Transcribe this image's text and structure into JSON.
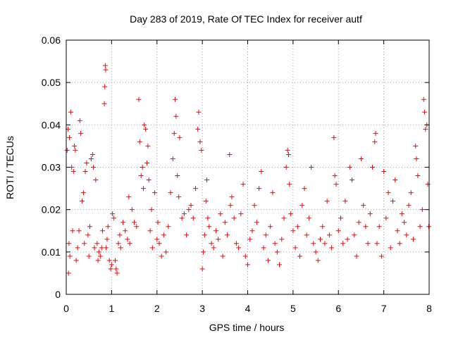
{
  "chart_data": {
    "type": "scatter",
    "title": "Day 283 of 2019, Rate Of TEC Index for receiver autf",
    "xlabel": "GPS time / hours",
    "ylabel": "ROTI / TECUs",
    "xlim": [
      0,
      8
    ],
    "ylim": [
      0,
      0.06
    ],
    "x_ticks": [
      "0",
      "1",
      "2",
      "3",
      "4",
      "5",
      "6",
      "7",
      "8"
    ],
    "y_ticks": [
      "0",
      "0.01",
      "0.02",
      "0.03",
      "0.04",
      "0.05",
      "0.06"
    ],
    "grid": true,
    "marker": "+",
    "point_color": "#ff0000",
    "series": [
      {
        "points": [
          [
            0.02,
            0.034
          ],
          [
            0.04,
            0.039
          ],
          [
            0.05,
            0.005
          ],
          [
            0.06,
            0.012
          ],
          [
            0.07,
            0.037
          ],
          [
            0.08,
            0.009
          ],
          [
            0.1,
            0.043
          ],
          [
            0.12,
            0.03
          ],
          [
            0.14,
            0.015
          ],
          [
            0.16,
            0.029
          ],
          [
            0.18,
            0.035
          ],
          [
            0.2,
            0.034
          ],
          [
            0.22,
            0.008
          ],
          [
            0.25,
            0.011
          ],
          [
            0.28,
            0.015
          ],
          [
            0.3,
            0.041
          ],
          [
            0.32,
            0.038
          ],
          [
            0.35,
            0.022
          ],
          [
            0.38,
            0.024
          ],
          [
            0.4,
            0.012
          ],
          [
            0.42,
            0.029
          ],
          [
            0.45,
            0.031
          ],
          [
            0.48,
            0.014
          ],
          [
            0.5,
            0.009
          ],
          [
            0.52,
            0.016
          ],
          [
            0.55,
            0.032
          ],
          [
            0.58,
            0.033
          ],
          [
            0.6,
            0.03
          ],
          [
            0.62,
            0.011
          ],
          [
            0.65,
            0.027
          ],
          [
            0.68,
            0.012
          ],
          [
            0.7,
            0.008
          ],
          [
            0.72,
            0.01
          ],
          [
            0.75,
            0.009
          ],
          [
            0.78,
            0.011
          ],
          [
            0.8,
            0.015
          ],
          [
            0.84,
            0.045
          ],
          [
            0.85,
            0.049
          ],
          [
            0.86,
            0.054
          ],
          [
            0.87,
            0.053
          ],
          [
            0.88,
            0.011
          ],
          [
            0.9,
            0.013
          ],
          [
            0.92,
            0.016
          ],
          [
            0.95,
            0.008
          ],
          [
            0.98,
            0.006
          ],
          [
            1.0,
            0.007
          ],
          [
            1.02,
            0.019
          ],
          [
            1.05,
            0.018
          ],
          [
            1.08,
            0.008
          ],
          [
            1.1,
            0.006
          ],
          [
            1.12,
            0.005
          ],
          [
            1.15,
            0.012
          ],
          [
            1.18,
            0.014
          ],
          [
            1.2,
            0.011
          ],
          [
            1.25,
            0.017
          ],
          [
            1.3,
            0.015
          ],
          [
            1.35,
            0.013
          ],
          [
            1.38,
            0.023
          ],
          [
            1.4,
            0.012
          ],
          [
            1.45,
            0.02
          ],
          [
            1.5,
            0.017
          ],
          [
            1.55,
            0.016
          ],
          [
            1.6,
            0.046
          ],
          [
            1.62,
            0.036
          ],
          [
            1.65,
            0.028
          ],
          [
            1.68,
            0.03
          ],
          [
            1.7,
            0.025
          ],
          [
            1.72,
            0.04
          ],
          [
            1.75,
            0.039
          ],
          [
            1.78,
            0.031
          ],
          [
            1.8,
            0.035
          ],
          [
            1.82,
            0.027
          ],
          [
            1.85,
            0.015
          ],
          [
            1.88,
            0.02
          ],
          [
            1.9,
            0.011
          ],
          [
            1.95,
            0.024
          ],
          [
            2.0,
            0.013
          ],
          [
            2.02,
            0.017
          ],
          [
            2.05,
            0.012
          ],
          [
            2.1,
            0.009
          ],
          [
            2.15,
            0.014
          ],
          [
            2.2,
            0.01
          ],
          [
            2.25,
            0.016
          ],
          [
            2.3,
            0.024
          ],
          [
            2.35,
            0.032
          ],
          [
            2.38,
            0.038
          ],
          [
            2.4,
            0.046
          ],
          [
            2.42,
            0.042
          ],
          [
            2.45,
            0.028
          ],
          [
            2.48,
            0.023
          ],
          [
            2.5,
            0.037
          ],
          [
            2.55,
            0.018
          ],
          [
            2.6,
            0.019
          ],
          [
            2.65,
            0.014
          ],
          [
            2.7,
            0.02
          ],
          [
            2.75,
            0.021
          ],
          [
            2.8,
            0.018
          ],
          [
            2.85,
            0.025
          ],
          [
            2.9,
            0.039
          ],
          [
            2.92,
            0.043
          ],
          [
            2.95,
            0.036
          ],
          [
            2.98,
            0.034
          ],
          [
            3.0,
            0.006
          ],
          [
            3.02,
            0.01
          ],
          [
            3.05,
            0.014
          ],
          [
            3.08,
            0.022
          ],
          [
            3.1,
            0.027
          ],
          [
            3.12,
            0.018
          ],
          [
            3.15,
            0.016
          ],
          [
            3.2,
            0.012
          ],
          [
            3.25,
            0.011
          ],
          [
            3.3,
            0.015
          ],
          [
            3.35,
            0.013
          ],
          [
            3.4,
            0.019
          ],
          [
            3.45,
            0.009
          ],
          [
            3.5,
            0.017
          ],
          [
            3.55,
            0.014
          ],
          [
            3.6,
            0.033
          ],
          [
            3.62,
            0.021
          ],
          [
            3.65,
            0.023
          ],
          [
            3.7,
            0.018
          ],
          [
            3.75,
            0.012
          ],
          [
            3.8,
            0.011
          ],
          [
            3.85,
            0.019
          ],
          [
            3.9,
            0.026
          ],
          [
            3.95,
            0.009
          ],
          [
            4.0,
            0.007
          ],
          [
            4.05,
            0.013
          ],
          [
            4.1,
            0.015
          ],
          [
            4.15,
            0.021
          ],
          [
            4.2,
            0.017
          ],
          [
            4.25,
            0.025
          ],
          [
            4.3,
            0.029
          ],
          [
            4.35,
            0.011
          ],
          [
            4.4,
            0.014
          ],
          [
            4.45,
            0.008
          ],
          [
            4.5,
            0.016
          ],
          [
            4.55,
            0.024
          ],
          [
            4.6,
            0.012
          ],
          [
            4.65,
            0.01
          ],
          [
            4.7,
            0.007
          ],
          [
            4.75,
            0.013
          ],
          [
            4.8,
            0.018
          ],
          [
            4.85,
            0.03
          ],
          [
            4.88,
            0.034
          ],
          [
            4.9,
            0.033
          ],
          [
            4.92,
            0.026
          ],
          [
            4.95,
            0.019
          ],
          [
            5.0,
            0.015
          ],
          [
            5.05,
            0.011
          ],
          [
            5.1,
            0.016
          ],
          [
            5.15,
            0.009
          ],
          [
            5.2,
            0.021
          ],
          [
            5.25,
            0.025
          ],
          [
            5.3,
            0.014
          ],
          [
            5.35,
            0.018
          ],
          [
            5.4,
            0.03
          ],
          [
            5.45,
            0.012
          ],
          [
            5.5,
            0.01
          ],
          [
            5.55,
            0.008
          ],
          [
            5.6,
            0.013
          ],
          [
            5.65,
            0.016
          ],
          [
            5.7,
            0.012
          ],
          [
            5.75,
            0.022
          ],
          [
            5.8,
            0.014
          ],
          [
            5.85,
            0.011
          ],
          [
            5.9,
            0.037
          ],
          [
            5.92,
            0.028
          ],
          [
            5.95,
            0.026
          ],
          [
            6.0,
            0.015
          ],
          [
            6.05,
            0.018
          ],
          [
            6.1,
            0.012
          ],
          [
            6.15,
            0.022
          ],
          [
            6.2,
            0.013
          ],
          [
            6.25,
            0.03
          ],
          [
            6.3,
            0.027
          ],
          [
            6.35,
            0.014
          ],
          [
            6.4,
            0.009
          ],
          [
            6.45,
            0.017
          ],
          [
            6.5,
            0.032
          ],
          [
            6.55,
            0.021
          ],
          [
            6.6,
            0.016
          ],
          [
            6.65,
            0.012
          ],
          [
            6.7,
            0.019
          ],
          [
            6.75,
            0.03
          ],
          [
            6.8,
            0.036
          ],
          [
            6.82,
            0.038
          ],
          [
            6.85,
            0.012
          ],
          [
            6.9,
            0.016
          ],
          [
            6.95,
            0.009
          ],
          [
            7.0,
            0.029
          ],
          [
            7.05,
            0.018
          ],
          [
            7.1,
            0.024
          ],
          [
            7.15,
            0.011
          ],
          [
            7.2,
            0.022
          ],
          [
            7.25,
            0.027
          ],
          [
            7.3,
            0.015
          ],
          [
            7.35,
            0.012
          ],
          [
            7.4,
            0.019
          ],
          [
            7.45,
            0.017
          ],
          [
            7.5,
            0.014
          ],
          [
            7.55,
            0.021
          ],
          [
            7.6,
            0.024
          ],
          [
            7.65,
            0.013
          ],
          [
            7.7,
            0.035
          ],
          [
            7.72,
            0.032
          ],
          [
            7.75,
            0.028
          ],
          [
            7.8,
            0.016
          ],
          [
            7.85,
            0.02
          ],
          [
            7.88,
            0.046
          ],
          [
            7.9,
            0.043
          ],
          [
            7.92,
            0.039
          ],
          [
            7.95,
            0.04
          ],
          [
            7.97,
            0.026
          ],
          [
            7.99,
            0.016
          ]
        ]
      }
    ]
  }
}
